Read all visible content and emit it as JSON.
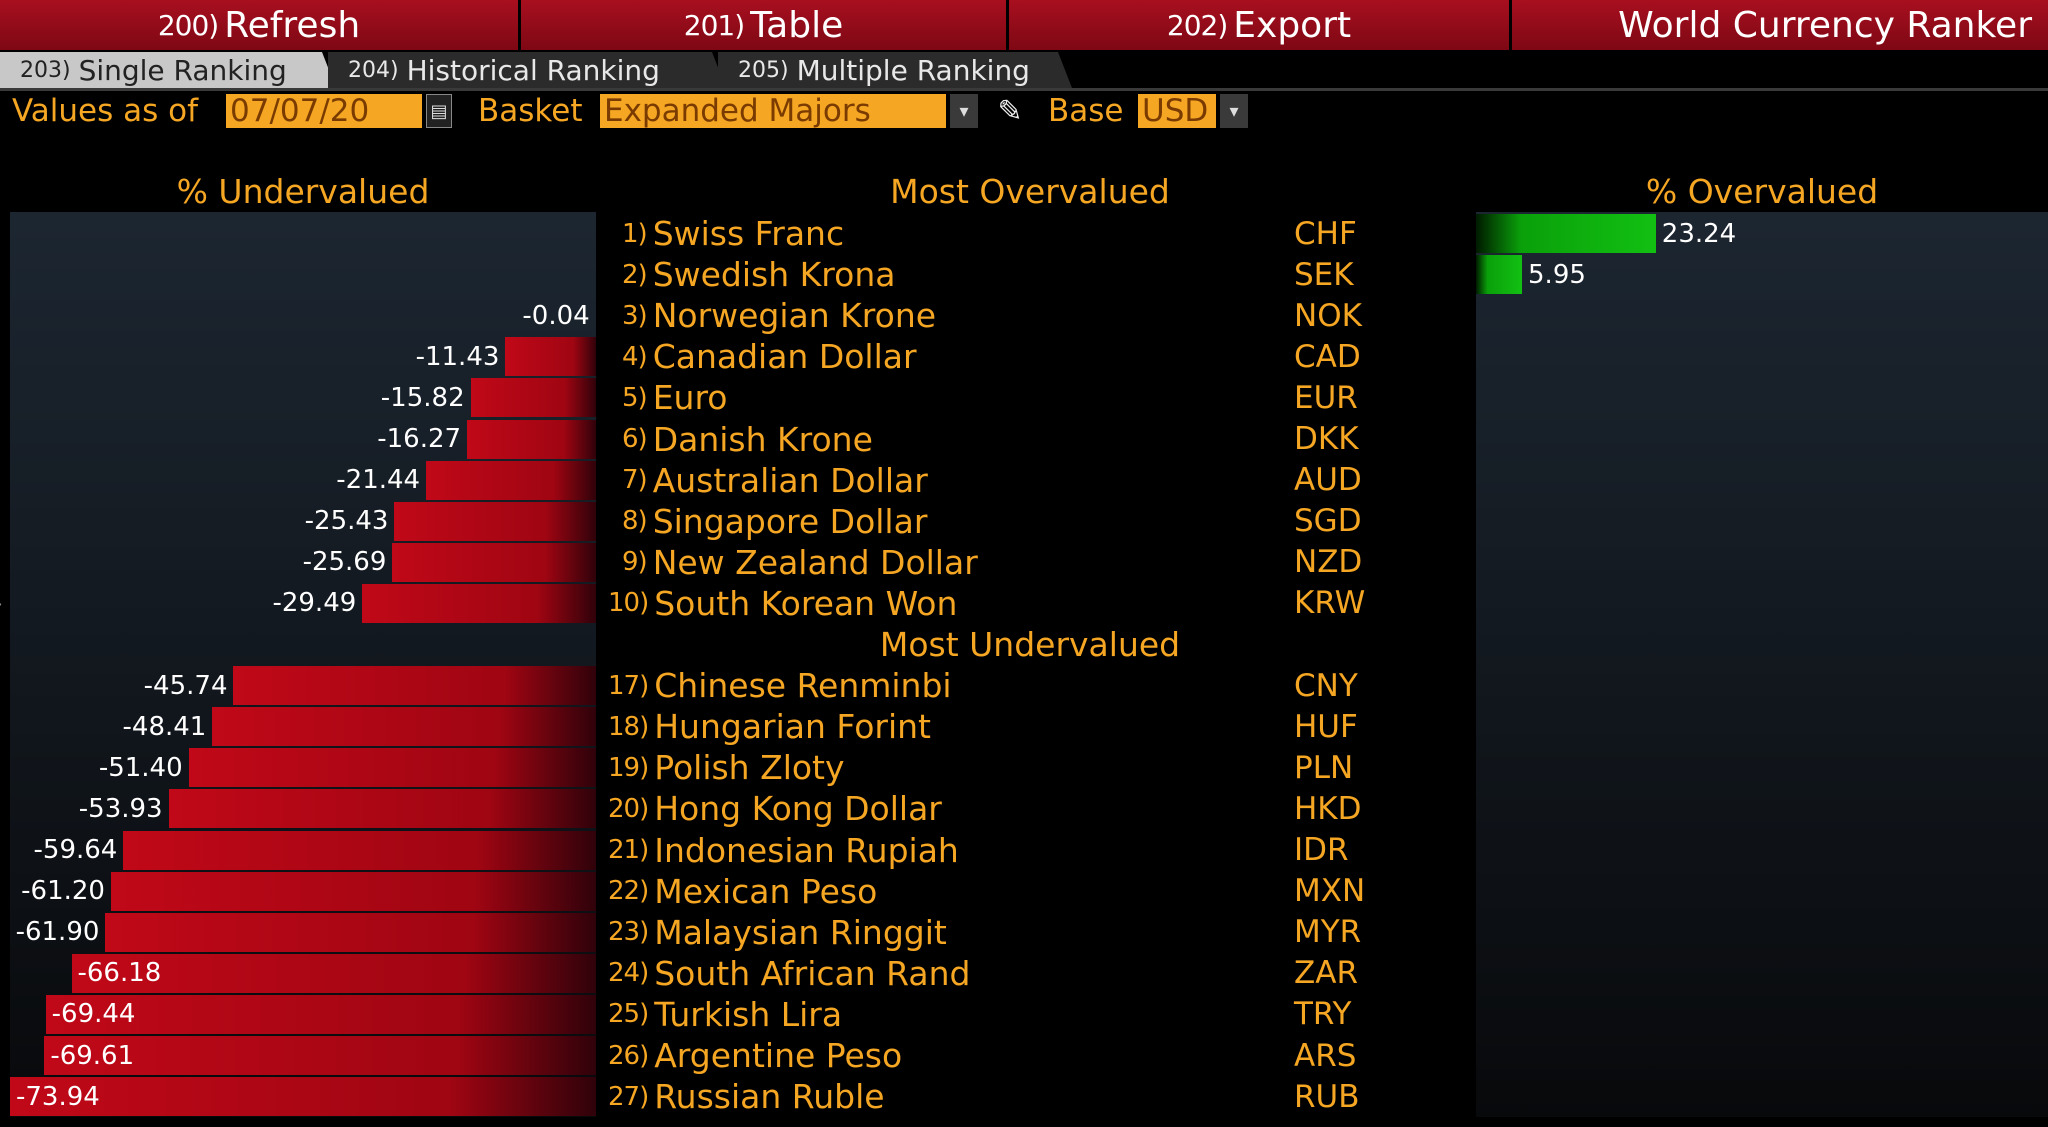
{
  "function_bar": {
    "refresh": {
      "num": "200)",
      "label": "Refresh"
    },
    "table": {
      "num": "201)",
      "label": "Table"
    },
    "export": {
      "num": "202)",
      "label": "Export"
    },
    "title": "World Currency Ranker"
  },
  "tabs": [
    {
      "num": "203)",
      "label": "Single Ranking"
    },
    {
      "num": "204)",
      "label": "Historical Ranking"
    },
    {
      "num": "205)",
      "label": "Multiple Ranking"
    }
  ],
  "controls": {
    "values_label": "Values as of",
    "date": "07/07/20",
    "basket_label": "Basket",
    "basket": "Expanded Majors",
    "base_label": "Base",
    "base": "USD"
  },
  "headers": {
    "undervalued": "% Undervalued",
    "most_overvalued": "Most Overvalued",
    "overvalued": "% Overvalued",
    "most_undervalued": "Most Undervalued"
  },
  "colors": {
    "accent": "#f5a623",
    "negative_bar": "#c00818",
    "positive_bar": "#12c012"
  },
  "max_abs": 73.94,
  "overvalued": [
    {
      "rank": "1)",
      "name": "Swiss Franc",
      "code": "CHF",
      "value": 23.24,
      "value_text": "23.24"
    },
    {
      "rank": "2)",
      "name": "Swedish Krona",
      "code": "SEK",
      "value": 5.95,
      "value_text": "5.95"
    },
    {
      "rank": "3)",
      "name": "Norwegian Krone",
      "code": "NOK",
      "value": -0.04,
      "value_text": "-0.04"
    },
    {
      "rank": "4)",
      "name": "Canadian Dollar",
      "code": "CAD",
      "value": -11.43,
      "value_text": "-11.43"
    },
    {
      "rank": "5)",
      "name": "Euro",
      "code": "EUR",
      "value": -15.82,
      "value_text": "-15.82"
    },
    {
      "rank": "6)",
      "name": "Danish Krone",
      "code": "DKK",
      "value": -16.27,
      "value_text": "-16.27"
    },
    {
      "rank": "7)",
      "name": "Australian Dollar",
      "code": "AUD",
      "value": -21.44,
      "value_text": "-21.44"
    },
    {
      "rank": "8)",
      "name": "Singapore Dollar",
      "code": "SGD",
      "value": -25.43,
      "value_text": "-25.43"
    },
    {
      "rank": "9)",
      "name": "New Zealand Dollar",
      "code": "NZD",
      "value": -25.69,
      "value_text": "-25.69"
    },
    {
      "rank": "10)",
      "name": "South Korean Won",
      "code": "KRW",
      "value": -29.49,
      "value_text": "-29.49"
    }
  ],
  "undervalued": [
    {
      "rank": "17)",
      "name": "Chinese Renminbi",
      "code": "CNY",
      "value": -45.74,
      "value_text": "-45.74"
    },
    {
      "rank": "18)",
      "name": "Hungarian Forint",
      "code": "HUF",
      "value": -48.41,
      "value_text": "-48.41"
    },
    {
      "rank": "19)",
      "name": "Polish Zloty",
      "code": "PLN",
      "value": -51.4,
      "value_text": "-51.40"
    },
    {
      "rank": "20)",
      "name": "Hong Kong Dollar",
      "code": "HKD",
      "value": -53.93,
      "value_text": "-53.93"
    },
    {
      "rank": "21)",
      "name": "Indonesian Rupiah",
      "code": "IDR",
      "value": -59.64,
      "value_text": "-59.64"
    },
    {
      "rank": "22)",
      "name": "Mexican Peso",
      "code": "MXN",
      "value": -61.2,
      "value_text": "-61.20"
    },
    {
      "rank": "23)",
      "name": "Malaysian Ringgit",
      "code": "MYR",
      "value": -61.9,
      "value_text": "-61.90"
    },
    {
      "rank": "24)",
      "name": "South African Rand",
      "code": "ZAR",
      "value": -66.18,
      "value_text": "-66.18"
    },
    {
      "rank": "25)",
      "name": "Turkish Lira",
      "code": "TRY",
      "value": -69.44,
      "value_text": "-69.44"
    },
    {
      "rank": "26)",
      "name": "Argentine Peso",
      "code": "ARS",
      "value": -69.61,
      "value_text": "-69.61"
    },
    {
      "rank": "27)",
      "name": "Russian Ruble",
      "code": "RUB",
      "value": -73.94,
      "value_text": "-73.94"
    }
  ]
}
